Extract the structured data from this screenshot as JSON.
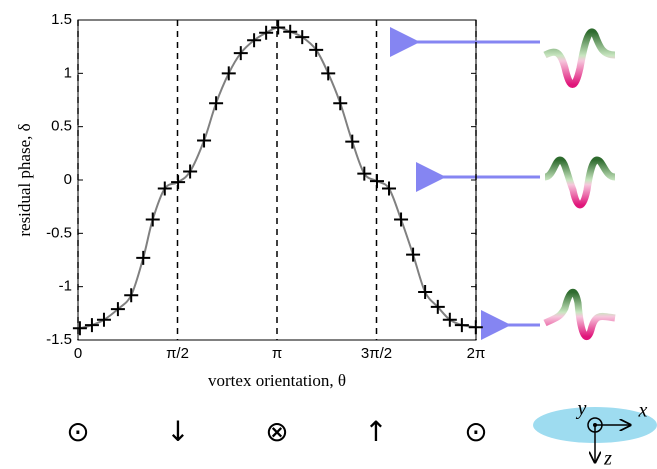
{
  "chart_data": {
    "type": "line",
    "x_label": "vortex orientation, θ",
    "y_label": "residual phase, δ",
    "x": [
      0.03,
      0.22,
      0.41,
      0.63,
      0.84,
      1.03,
      1.18,
      1.37,
      1.58,
      1.77,
      1.99,
      2.18,
      2.38,
      2.57,
      2.78,
      2.97,
      3.16,
      3.35,
      3.54,
      3.76,
      3.95,
      4.14,
      4.33,
      4.52,
      4.72,
      4.91,
      5.1,
      5.29,
      5.48,
      5.68,
      5.87,
      6.06,
      6.28
    ],
    "values": [
      -1.39,
      -1.36,
      -1.31,
      -1.21,
      -1.08,
      -0.73,
      -0.37,
      -0.08,
      -0.02,
      0.08,
      0.37,
      0.72,
      1.0,
      1.19,
      1.31,
      1.38,
      1.43,
      1.39,
      1.34,
      1.22,
      1.0,
      0.72,
      0.36,
      0.06,
      -0.01,
      -0.08,
      -0.37,
      -0.7,
      -1.05,
      -1.19,
      -1.31,
      -1.36,
      -1.38
    ],
    "marker_color": "#000000",
    "line_color": "#808080",
    "xlim": [
      0,
      6.2832
    ],
    "ylim": [
      -1.5,
      1.5
    ],
    "xticks": [
      0,
      {
        "value": 1.5708,
        "label": "π/2"
      },
      {
        "value": 3.1416,
        "label": "π"
      },
      {
        "value": 4.7124,
        "label": "3π/2"
      },
      {
        "value": 6.2832,
        "label": "2π"
      }
    ],
    "yticks": [
      -1.5,
      -1,
      -0.5,
      0,
      0.5,
      1,
      1.5
    ],
    "grid": true,
    "annotations": [
      "⊙",
      "↓",
      "⊗",
      "↑",
      "⊙",
      "y",
      "x",
      "z"
    ]
  }
}
